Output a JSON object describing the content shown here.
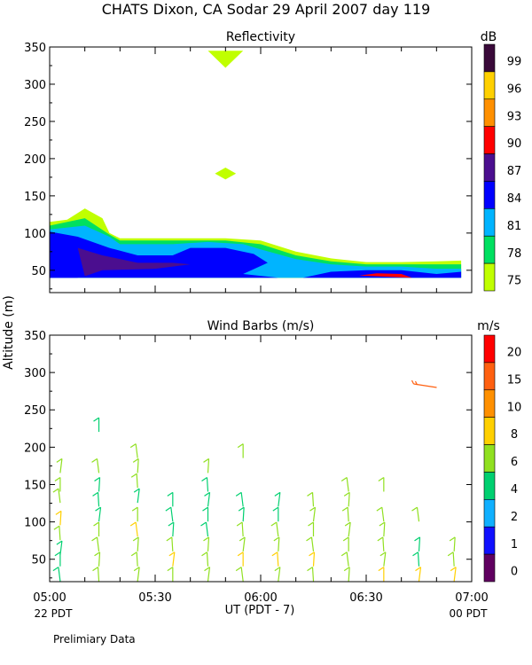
{
  "figure": {
    "title": "CHATS Dixon, CA  Sodar  29 April 2007  day 119",
    "ylabel": "Altitude (m)",
    "xlabel": "UT  (PDT - 7)",
    "left_time_note": "22 PDT",
    "right_time_note": "00 PDT",
    "footer": "Prelimiary Data"
  },
  "chart_data": [
    {
      "type": "heatmap",
      "title": "Reflectivity",
      "colorbar_label": "dB",
      "colorbar_ticks": [
        "99",
        "96",
        "93",
        "90",
        "87",
        "84",
        "81",
        "78",
        "75"
      ],
      "colorbar_colors": [
        "#3a0a3a",
        "#ffd000",
        "#ff9000",
        "#ff0000",
        "#4b0e8f",
        "#0000ff",
        "#00b4ff",
        "#00e060",
        "#c0ff00"
      ],
      "xticks": [
        "05:00",
        "05:30",
        "06:00",
        "06:30",
        "07:00"
      ],
      "xlim_minutes_after_0500": [
        0,
        120
      ],
      "ylim": [
        20,
        350
      ],
      "yticks": [
        50,
        100,
        150,
        200,
        250,
        300,
        350
      ],
      "contours": [
        {
          "level_db": 75,
          "color": "#c0ff00",
          "points": [
            [
              0,
              115
            ],
            [
              5,
              118
            ],
            [
              10,
              133
            ],
            [
              15,
              120
            ],
            [
              17,
              100
            ],
            [
              20,
              93
            ],
            [
              35,
              93
            ],
            [
              50,
              93
            ],
            [
              60,
              90
            ],
            [
              70,
              75
            ],
            [
              80,
              66
            ],
            [
              90,
              61
            ],
            [
              100,
              61
            ],
            [
              110,
              62
            ],
            [
              117,
              63
            ],
            [
              117,
              40
            ],
            [
              0,
              40
            ]
          ]
        },
        {
          "level_db": 78,
          "color": "#00e060",
          "points": [
            [
              0,
              110
            ],
            [
              10,
              120
            ],
            [
              17,
              98
            ],
            [
              20,
              90
            ],
            [
              35,
              90
            ],
            [
              50,
              90
            ],
            [
              60,
              85
            ],
            [
              70,
              70
            ],
            [
              80,
              62
            ],
            [
              90,
              58
            ],
            [
              100,
              58
            ],
            [
              110,
              58
            ],
            [
              117,
              58
            ],
            [
              117,
              40
            ],
            [
              0,
              40
            ]
          ]
        },
        {
          "level_db": 81,
          "color": "#00b4ff",
          "points": [
            [
              0,
              105
            ],
            [
              10,
              110
            ],
            [
              17,
              95
            ],
            [
              20,
              85
            ],
            [
              35,
              85
            ],
            [
              45,
              88
            ],
            [
              55,
              85
            ],
            [
              60,
              78
            ],
            [
              70,
              65
            ],
            [
              80,
              58
            ],
            [
              90,
              55
            ],
            [
              100,
              55
            ],
            [
              110,
              52
            ],
            [
              117,
              52
            ],
            [
              117,
              40
            ],
            [
              0,
              40
            ]
          ]
        },
        {
          "level_db": 84,
          "color": "#0000ff",
          "points": [
            [
              0,
              102
            ],
            [
              8,
              95
            ],
            [
              17,
              80
            ],
            [
              25,
              70
            ],
            [
              35,
              70
            ],
            [
              40,
              80
            ],
            [
              50,
              80
            ],
            [
              58,
              72
            ],
            [
              62,
              60
            ],
            [
              55,
              45
            ],
            [
              65,
              40
            ],
            [
              0,
              40
            ]
          ]
        },
        {
          "level_db": 84,
          "color": "#0000ff",
          "points": [
            [
              0,
              60
            ],
            [
              4,
              60
            ],
            [
              8,
              40
            ],
            [
              0,
              40
            ]
          ]
        },
        {
          "level_db": 84,
          "color": "#0000ff",
          "points": [
            [
              72,
              40
            ],
            [
              80,
              48
            ],
            [
              90,
              50
            ],
            [
              100,
              50
            ],
            [
              110,
              45
            ],
            [
              117,
              48
            ],
            [
              117,
              40
            ]
          ]
        },
        {
          "level_db": 87,
          "color": "#4b0e8f",
          "points": [
            [
              8,
              80
            ],
            [
              15,
              70
            ],
            [
              25,
              60
            ],
            [
              35,
              60
            ],
            [
              40,
              58
            ],
            [
              30,
              52
            ],
            [
              15,
              50
            ],
            [
              10,
              42
            ]
          ]
        },
        {
          "level_db": 90,
          "color": "#ff0000",
          "points": [
            [
              88,
              43
            ],
            [
              93,
              46
            ],
            [
              100,
              45
            ],
            [
              103,
              40
            ]
          ]
        }
      ],
      "plumes": [
        {
          "color": "#c0ff00",
          "points": [
            [
              45,
              345
            ],
            [
              55,
              345
            ],
            [
              50,
              322
            ]
          ]
        },
        {
          "color": "#c0ff00",
          "points": [
            [
              47,
              180
            ],
            [
              50,
              188
            ],
            [
              53,
              180
            ],
            [
              50,
              172
            ]
          ]
        }
      ]
    },
    {
      "type": "scatter",
      "title": "Wind Barbs (m/s)",
      "colorbar_label": "m/s",
      "colorbar_ticks": [
        "20",
        "15",
        "10",
        "8",
        "6",
        "4",
        "2",
        "1",
        "0"
      ],
      "colorbar_colors": [
        "#ff0000",
        "#ff6010",
        "#ff9000",
        "#ffd000",
        "#90e020",
        "#00d070",
        "#10b0ff",
        "#1010ff",
        "#600060"
      ],
      "xticks": [
        "05:00",
        "05:30",
        "06:00",
        "06:30",
        "07:00"
      ],
      "xlim_minutes_after_0500": [
        0,
        120
      ],
      "ylim": [
        20,
        350
      ],
      "yticks": [
        50,
        100,
        150,
        200,
        250,
        300,
        350
      ],
      "barbs": [
        {
          "time_min": 3,
          "alt": 30,
          "speed": 4
        },
        {
          "time_min": 3,
          "alt": 50,
          "speed": 5
        },
        {
          "time_min": 3,
          "alt": 65,
          "speed": 5
        },
        {
          "time_min": 3,
          "alt": 85,
          "speed": 6
        },
        {
          "time_min": 3,
          "alt": 105,
          "speed": 9
        },
        {
          "time_min": 3,
          "alt": 135,
          "speed": 6
        },
        {
          "time_min": 3,
          "alt": 150,
          "speed": 6
        },
        {
          "time_min": 3,
          "alt": 175,
          "speed": 6
        },
        {
          "time_min": 14,
          "alt": 30,
          "speed": 6
        },
        {
          "time_min": 14,
          "alt": 50,
          "speed": 6
        },
        {
          "time_min": 14,
          "alt": 70,
          "speed": 7
        },
        {
          "time_min": 14,
          "alt": 90,
          "speed": 6
        },
        {
          "time_min": 14,
          "alt": 110,
          "speed": 5
        },
        {
          "time_min": 14,
          "alt": 130,
          "speed": 4
        },
        {
          "time_min": 14,
          "alt": 150,
          "speed": 5
        },
        {
          "time_min": 14,
          "alt": 175,
          "speed": 6
        },
        {
          "time_min": 14,
          "alt": 230,
          "speed": 5
        },
        {
          "time_min": 25,
          "alt": 30,
          "speed": 7
        },
        {
          "time_min": 25,
          "alt": 50,
          "speed": 6
        },
        {
          "time_min": 25,
          "alt": 70,
          "speed": 6
        },
        {
          "time_min": 25,
          "alt": 90,
          "speed": 8
        },
        {
          "time_min": 25,
          "alt": 110,
          "speed": 6
        },
        {
          "time_min": 25,
          "alt": 135,
          "speed": 5
        },
        {
          "time_min": 25,
          "alt": 155,
          "speed": 6
        },
        {
          "time_min": 25,
          "alt": 175,
          "speed": 6
        },
        {
          "time_min": 25,
          "alt": 195,
          "speed": 7
        },
        {
          "time_min": 35,
          "alt": 30,
          "speed": 6
        },
        {
          "time_min": 35,
          "alt": 50,
          "speed": 8
        },
        {
          "time_min": 35,
          "alt": 70,
          "speed": 6
        },
        {
          "time_min": 35,
          "alt": 90,
          "speed": 5
        },
        {
          "time_min": 35,
          "alt": 110,
          "speed": 4
        },
        {
          "time_min": 35,
          "alt": 130,
          "speed": 5
        },
        {
          "time_min": 45,
          "alt": 30,
          "speed": 6
        },
        {
          "time_min": 45,
          "alt": 50,
          "speed": 7
        },
        {
          "time_min": 45,
          "alt": 70,
          "speed": 6
        },
        {
          "time_min": 45,
          "alt": 90,
          "speed": 5
        },
        {
          "time_min": 45,
          "alt": 110,
          "speed": 4
        },
        {
          "time_min": 45,
          "alt": 130,
          "speed": 4
        },
        {
          "time_min": 45,
          "alt": 150,
          "speed": 5
        },
        {
          "time_min": 45,
          "alt": 175,
          "speed": 6
        },
        {
          "time_min": 55,
          "alt": 30,
          "speed": 7
        },
        {
          "time_min": 55,
          "alt": 50,
          "speed": 8
        },
        {
          "time_min": 55,
          "alt": 70,
          "speed": 6
        },
        {
          "time_min": 55,
          "alt": 90,
          "speed": 6
        },
        {
          "time_min": 55,
          "alt": 110,
          "speed": 5
        },
        {
          "time_min": 55,
          "alt": 130,
          "speed": 5
        },
        {
          "time_min": 55,
          "alt": 195,
          "speed": 6
        },
        {
          "time_min": 65,
          "alt": 30,
          "speed": 7
        },
        {
          "time_min": 65,
          "alt": 50,
          "speed": 8
        },
        {
          "time_min": 65,
          "alt": 70,
          "speed": 6
        },
        {
          "time_min": 65,
          "alt": 90,
          "speed": 6
        },
        {
          "time_min": 65,
          "alt": 110,
          "speed": 5
        },
        {
          "time_min": 65,
          "alt": 130,
          "speed": 4
        },
        {
          "time_min": 75,
          "alt": 30,
          "speed": 7
        },
        {
          "time_min": 75,
          "alt": 50,
          "speed": 8
        },
        {
          "time_min": 75,
          "alt": 70,
          "speed": 7
        },
        {
          "time_min": 75,
          "alt": 90,
          "speed": 6
        },
        {
          "time_min": 75,
          "alt": 110,
          "speed": 6
        },
        {
          "time_min": 75,
          "alt": 130,
          "speed": 6
        },
        {
          "time_min": 85,
          "alt": 30,
          "speed": 7
        },
        {
          "time_min": 85,
          "alt": 50,
          "speed": 7
        },
        {
          "time_min": 85,
          "alt": 70,
          "speed": 6
        },
        {
          "time_min": 85,
          "alt": 90,
          "speed": 6
        },
        {
          "time_min": 85,
          "alt": 110,
          "speed": 6
        },
        {
          "time_min": 85,
          "alt": 130,
          "speed": 6
        },
        {
          "time_min": 85,
          "alt": 150,
          "speed": 6
        },
        {
          "time_min": 95,
          "alt": 30,
          "speed": 8
        },
        {
          "time_min": 95,
          "alt": 50,
          "speed": 7
        },
        {
          "time_min": 95,
          "alt": 70,
          "speed": 6
        },
        {
          "time_min": 95,
          "alt": 90,
          "speed": 6
        },
        {
          "time_min": 95,
          "alt": 110,
          "speed": 6
        },
        {
          "time_min": 95,
          "alt": 150,
          "speed": 6
        },
        {
          "time_min": 105,
          "alt": 30,
          "speed": 8
        },
        {
          "time_min": 105,
          "alt": 50,
          "speed": 4
        },
        {
          "time_min": 105,
          "alt": 70,
          "speed": 5
        },
        {
          "time_min": 105,
          "alt": 110,
          "speed": 6
        },
        {
          "time_min": 105,
          "alt": 280,
          "speed": 15
        },
        {
          "time_min": 115,
          "alt": 30,
          "speed": 9
        },
        {
          "time_min": 115,
          "alt": 50,
          "speed": 7
        },
        {
          "time_min": 115,
          "alt": 70,
          "speed": 7
        }
      ]
    }
  ]
}
